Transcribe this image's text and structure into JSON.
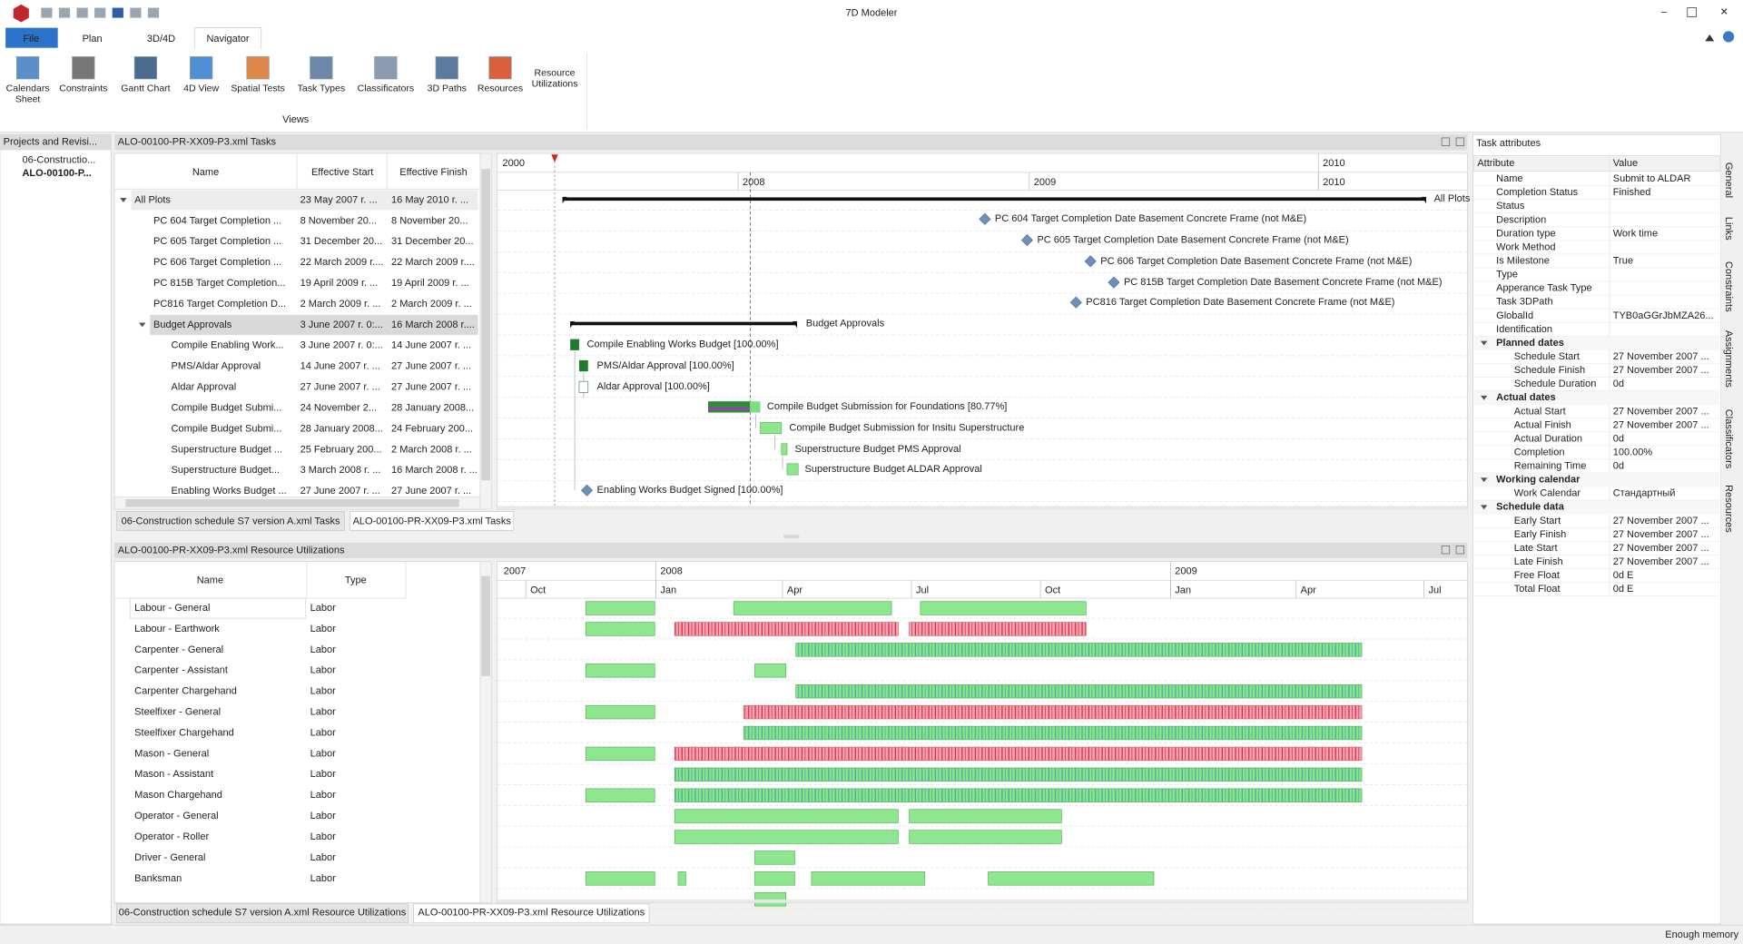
{
  "window": {
    "title": "7D Modeler"
  },
  "ribbon": {
    "tabs": [
      "File",
      "Plan",
      "3D/4D",
      "Navigator"
    ],
    "buttons": [
      "Calendars Sheet",
      "Constraints",
      "Gantt Chart",
      "4D View",
      "Spatial Tests",
      "Task Types",
      "Classificators",
      "3D Paths",
      "Resources",
      "Resource Utilizations"
    ],
    "group_label": "Views"
  },
  "projects_panel": {
    "title": "Projects and Revisi...",
    "items": [
      "06-Constructio...",
      "ALO-00100-P..."
    ]
  },
  "tasks_panel": {
    "title": "ALO-00100-PR-XX09-P3.xml Tasks",
    "columns": [
      "Name",
      "Effective Start",
      "Effective Finish"
    ],
    "rows": [
      [
        "All Plots",
        "23 May 2007 r. ...",
        "16 May 2010 r. ..."
      ],
      [
        "PC 604 Target Completion ...",
        "8 November 20...",
        "8 November 20..."
      ],
      [
        "PC 605 Target Completion ...",
        "31 December 20...",
        "31 December 20..."
      ],
      [
        "PC 606 Target Completion ...",
        "22 March 2009 r....",
        "22 March 2009 r...."
      ],
      [
        "PC 815B Target Completion...",
        "19 April 2009 r. ...",
        "19 April 2009 r. ..."
      ],
      [
        "PC816 Target Completion D...",
        "2 March 2009 r. ...",
        "2 March 2009 r. ..."
      ],
      [
        "Budget Approvals",
        "3 June 2007 r. 0:...",
        "16 March 2008 r...."
      ],
      [
        "Compile Enabling Work...",
        "3 June 2007 r. 0:...",
        "14 June 2007 r. ..."
      ],
      [
        "PMS/Aldar Approval",
        "14 June 2007 r. ...",
        "27 June 2007 r. ..."
      ],
      [
        "Aldar Approval",
        "27 June 2007 r. ...",
        "27 June 2007 r. ..."
      ],
      [
        "Compile Budget Submi...",
        "24 November 2...",
        "28 January 2008..."
      ],
      [
        "Compile Budget Submi...",
        "28 January 2008...",
        "24 February 200..."
      ],
      [
        "Superstructure  Budget ...",
        "25 February 200...",
        "2 March 2008 r. ..."
      ],
      [
        "Superstructure  Budget...",
        "3 March 2008 r. ...",
        "16 March 2008 r. ..."
      ],
      [
        "Enabling Works Budget ...",
        "27 June 2007 r. ...",
        "27 June 2007 r. ..."
      ]
    ],
    "timeline_top": [
      "2000",
      "2010"
    ],
    "timeline_years": [
      "2008",
      "2009",
      "2010"
    ],
    "gantt_labels": [
      "All Plots",
      "PC 604 Target Completion Date Basement Concrete Frame (not M&E)",
      "PC 605 Target Completion Date  Basement Concrete Frame (not M&E)",
      "PC 606 Target Completion Date  Basement Concrete Frame (not M&E)",
      "PC 815B Target Completion Date  Basement Concrete Frame (not M&E)",
      "PC816 Target Completion Date  Basement Concrete Frame (not M&E)",
      "Budget Approvals",
      "Compile Enabling Works Budget [100.00%]",
      "PMS/Aldar Approval [100.00%]",
      "Aldar Approval [100.00%]",
      "Compile Budget Submission for Foundations [80.77%]",
      "Compile Budget Submission for Insitu Superstructure",
      "Superstructure  Budget PMS Approval",
      "Superstructure   Budget ALDAR Approval",
      "Enabling Works Budget Signed [100.00%]"
    ],
    "tabs": [
      "06-Construction schedule S7 version A.xml Tasks",
      "ALO-00100-PR-XX09-P3.xml Tasks"
    ]
  },
  "resources_panel": {
    "title": "ALO-00100-PR-XX09-P3.xml Resource Utilizations",
    "columns": [
      "Name",
      "Type"
    ],
    "rows": [
      [
        "Labour - General",
        "Labor"
      ],
      [
        "Labour - Earthwork",
        "Labor"
      ],
      [
        "Carpenter - General",
        "Labor"
      ],
      [
        "Carpenter - Assistant",
        "Labor"
      ],
      [
        "Carpenter Chargehand",
        "Labor"
      ],
      [
        "Steelfixer - General",
        "Labor"
      ],
      [
        "Steelfixer Chargehand",
        "Labor"
      ],
      [
        "Mason - General",
        "Labor"
      ],
      [
        "Mason - Assistant",
        "Labor"
      ],
      [
        "Mason Chargehand",
        "Labor"
      ],
      [
        "Operator - General",
        "Labor"
      ],
      [
        "Operator - Roller",
        "Labor"
      ],
      [
        "Driver - General",
        "Labor"
      ],
      [
        "Banksman",
        "Labor"
      ]
    ],
    "timeline_years": [
      "2007",
      "2008",
      "2009"
    ],
    "timeline_months": [
      "Oct",
      "Jan",
      "Apr",
      "Jul",
      "Oct",
      "Jan",
      "Apr",
      "Jul"
    ],
    "tabs": [
      "06-Construction schedule S7 version A.xml Resource Utilizations",
      "ALO-00100-PR-XX09-P3.xml Resource Utilizations"
    ]
  },
  "attributes_panel": {
    "title": "Task attributes",
    "columns": [
      "Attribute",
      "Value"
    ],
    "rows": [
      {
        "attribute": "Name",
        "value": "Submit to ALDAR"
      },
      {
        "attribute": "Completion Status",
        "value": "Finished"
      },
      {
        "attribute": "Status"
      },
      {
        "attribute": "Description"
      },
      {
        "attribute": "Duration type",
        "value": "Work time"
      },
      {
        "attribute": "Work Method"
      },
      {
        "attribute": "Is Milestone",
        "value": "True"
      },
      {
        "attribute": "Type"
      },
      {
        "attribute": "Apperance Task Type"
      },
      {
        "attribute": "Task 3DPath"
      },
      {
        "attribute": "GlobalId",
        "value": "TYB0aGGrJbMZA26..."
      },
      {
        "attribute": "Identification"
      },
      {
        "group": "Planned dates"
      },
      {
        "attribute": "Schedule Start",
        "value": "27 November 2007 ..."
      },
      {
        "attribute": "Schedule Finish",
        "value": "27 November 2007 ..."
      },
      {
        "attribute": "Schedule Duration",
        "value": "0d"
      },
      {
        "group": "Actual dates"
      },
      {
        "attribute": "Actual Start",
        "value": "27 November 2007 ..."
      },
      {
        "attribute": "Actual Finish",
        "value": "27 November 2007 ..."
      },
      {
        "attribute": "Actual Duration",
        "value": "0d"
      },
      {
        "attribute": "Completion",
        "value": "100.00%"
      },
      {
        "attribute": "Remaining Time",
        "value": "0d"
      },
      {
        "group": "Working calendar"
      },
      {
        "attribute": "Work Calendar",
        "value": "Стандартный"
      },
      {
        "group": "Schedule data"
      },
      {
        "attribute": "Early Start",
        "value": "27 November 2007 ..."
      },
      {
        "attribute": "Early Finish",
        "value": "27 November 2007 ..."
      },
      {
        "attribute": "Late Start",
        "value": "27 November 2007 ..."
      },
      {
        "attribute": "Late Finish",
        "value": "27 November 2007 ..."
      },
      {
        "attribute": "Free Float",
        "value": "0d E"
      },
      {
        "attribute": "Total Float",
        "value": "0d E"
      }
    ],
    "side_tabs": [
      "General",
      "Links",
      "Constraints",
      "Assignments",
      "Classificators",
      "Resources"
    ]
  },
  "status_bar": {
    "text": "Enough memory"
  }
}
